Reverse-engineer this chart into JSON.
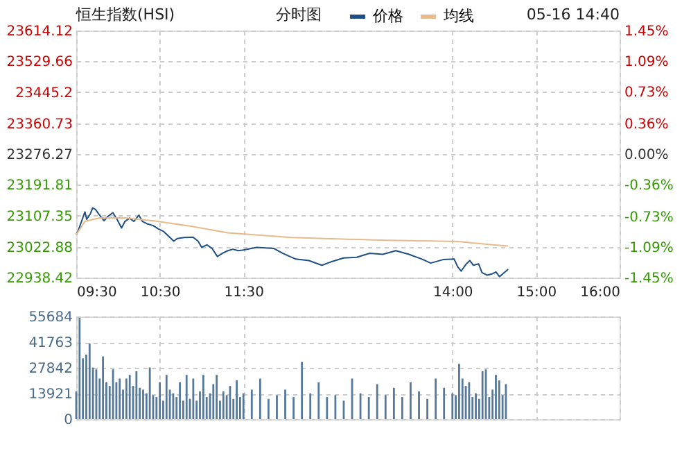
{
  "chart_data": [
    {
      "type": "line",
      "title": "恒生指数(HSI)",
      "annotations": [
        "分时图",
        "05-16 14:40"
      ],
      "legend": "top",
      "grid": true,
      "xlim": [
        9.5,
        16
      ],
      "xticks": [
        {
          "value": 9.5,
          "label": "09:30"
        },
        {
          "value": 10.5,
          "label": "10:30"
        },
        {
          "value": 11.5,
          "label": "11:30"
        },
        {
          "value": 14,
          "label": "14:00"
        },
        {
          "value": 15,
          "label": "15:00"
        },
        {
          "value": 16,
          "label": "16:00"
        }
      ],
      "ylim": [
        22938.42,
        23614.12
      ],
      "yticks": [
        22938.42,
        23022.88,
        23107.35,
        23191.81,
        23276.27,
        23360.73,
        23445.2,
        23529.66,
        23614.12
      ],
      "y2lim": [
        -1.45,
        1.45
      ],
      "y2ticks": [
        {
          "value": -1.45,
          "label": "-1.45%"
        },
        {
          "value": -1.09,
          "label": "-1.09%"
        },
        {
          "value": -0.73,
          "label": "-0.73%"
        },
        {
          "value": -0.36,
          "label": "-0.36%"
        },
        {
          "value": 0,
          "label": "0.00%"
        },
        {
          "value": 0.36,
          "label": "0.36%"
        },
        {
          "value": 0.73,
          "label": "0.73%"
        },
        {
          "value": 1.09,
          "label": "1.09%"
        },
        {
          "value": 1.45,
          "label": "1.45%"
        }
      ],
      "series": [
        {
          "name": "价格",
          "color": "#1f4f85",
          "x": [
            9.5,
            9.521,
            9.563,
            9.604,
            9.625,
            9.667,
            9.696,
            9.729,
            9.771,
            9.833,
            9.875,
            9.938,
            9.988,
            10.042,
            10.083,
            10.138,
            10.188,
            10.25,
            10.292,
            10.354,
            10.417,
            10.479,
            10.542,
            10.604,
            10.667,
            10.708,
            10.792,
            10.896,
            10.958,
            11.0,
            11.063,
            11.125,
            11.188,
            11.25,
            11.313,
            11.375,
            11.438,
            11.5,
            11.658,
            11.865,
            11.968,
            12.125,
            12.283,
            12.438,
            12.543,
            12.698,
            12.855,
            13.01,
            13.168,
            13.323,
            13.48,
            13.635,
            13.74,
            13.895,
            14.021,
            14.063,
            14.104,
            14.167,
            14.208,
            14.25,
            14.313,
            14.354,
            14.417,
            14.479,
            14.521,
            14.563,
            14.604,
            14.667
          ],
          "values": [
            23056,
            23065,
            23092,
            23118,
            23098,
            23112,
            23129,
            23125,
            23112,
            23094,
            23105,
            23116,
            23098,
            23074,
            23092,
            23101,
            23092,
            23109,
            23092,
            23085,
            23081,
            23072,
            23065,
            23052,
            23038,
            23045,
            23048,
            23049,
            23038,
            23021,
            23028,
            23018,
            22996,
            23005,
            23012,
            23016,
            23012,
            23014,
            23021,
            23018,
            23005,
            22989,
            22985,
            22972,
            22981,
            22992,
            22994,
            23005,
            23002,
            23012,
            23002,
            22989,
            22978,
            22988,
            22989,
            22968,
            22956,
            22976,
            22985,
            22972,
            22976,
            22952,
            22945,
            22949,
            22954,
            22941,
            22949,
            22961
          ]
        },
        {
          "name": "均线",
          "color": "#e8b98a",
          "x": [
            9.5,
            9.604,
            9.771,
            10.063,
            10.479,
            10.896,
            11.313,
            12.073,
            13.115,
            14.063,
            14.479,
            14.667
          ],
          "values": [
            23056,
            23092,
            23101,
            23102,
            23092,
            23078,
            23061,
            23048,
            23041,
            23037,
            23028,
            23025
          ]
        }
      ]
    },
    {
      "type": "bar",
      "grid": true,
      "tick_labels": "y",
      "xlim": [
        9.5,
        16
      ],
      "xticks": [
        {
          "value": 9.5,
          "label": null
        },
        {
          "value": 10.5,
          "label": null
        },
        {
          "value": 11.5,
          "label": null
        },
        {
          "value": 14,
          "label": null
        },
        {
          "value": 15,
          "label": null
        },
        {
          "value": 16,
          "label": null
        }
      ],
      "ylim": [
        0,
        55684
      ],
      "yticks": [
        0,
        13921,
        27842,
        41763,
        55684
      ],
      "x": [
        9.5,
        9.54,
        9.58,
        9.62,
        9.66,
        9.7,
        9.74,
        9.78,
        9.82,
        9.86,
        9.9,
        9.94,
        9.98,
        10.02,
        10.06,
        10.1,
        10.14,
        10.18,
        10.22,
        10.26,
        10.3,
        10.34,
        10.38,
        10.42,
        10.46,
        10.5,
        10.54,
        10.58,
        10.62,
        10.66,
        10.7,
        10.74,
        10.78,
        10.82,
        10.86,
        10.9,
        10.94,
        10.98,
        11.02,
        11.06,
        11.1,
        11.14,
        11.18,
        11.22,
        11.26,
        11.3,
        11.34,
        11.38,
        11.42,
        11.46,
        11.5,
        11.6,
        11.7,
        11.8,
        11.9,
        12.0,
        12.1,
        12.2,
        12.3,
        12.4,
        12.5,
        12.6,
        12.7,
        12.8,
        12.9,
        13.0,
        13.1,
        13.2,
        13.3,
        13.4,
        13.5,
        13.6,
        13.7,
        13.8,
        13.9,
        14.0,
        14.04,
        14.08,
        14.12,
        14.16,
        14.2,
        14.24,
        14.28,
        14.32,
        14.36,
        14.4,
        14.44,
        14.48,
        14.52,
        14.56,
        14.6,
        14.64
      ],
      "series": [
        {
          "color": "#56789a",
          "values": [
            15000,
            55000,
            33000,
            35000,
            41000,
            28000,
            27000,
            22000,
            34000,
            20000,
            18000,
            27000,
            20000,
            22000,
            16000,
            22000,
            24000,
            18000,
            26000,
            17000,
            16000,
            14000,
            28000,
            13000,
            12000,
            20000,
            10000,
            24000,
            16000,
            14000,
            12000,
            20000,
            10000,
            24000,
            11000,
            22000,
            10000,
            15000,
            24000,
            12000,
            14000,
            19000,
            24000,
            10000,
            15000,
            13000,
            18000,
            11000,
            21000,
            12000,
            14000,
            16000,
            22000,
            11000,
            13000,
            16000,
            12000,
            31000,
            14000,
            20000,
            12000,
            13000,
            10000,
            22000,
            14000,
            12000,
            19000,
            13000,
            17000,
            12000,
            20000,
            15000,
            11000,
            22000,
            17000,
            14000,
            13000,
            30000,
            22000,
            18000,
            20000,
            12000,
            14000,
            11000,
            26000,
            27000,
            12000,
            16000,
            24000,
            21000,
            13000,
            19000
          ]
        }
      ]
    }
  ]
}
